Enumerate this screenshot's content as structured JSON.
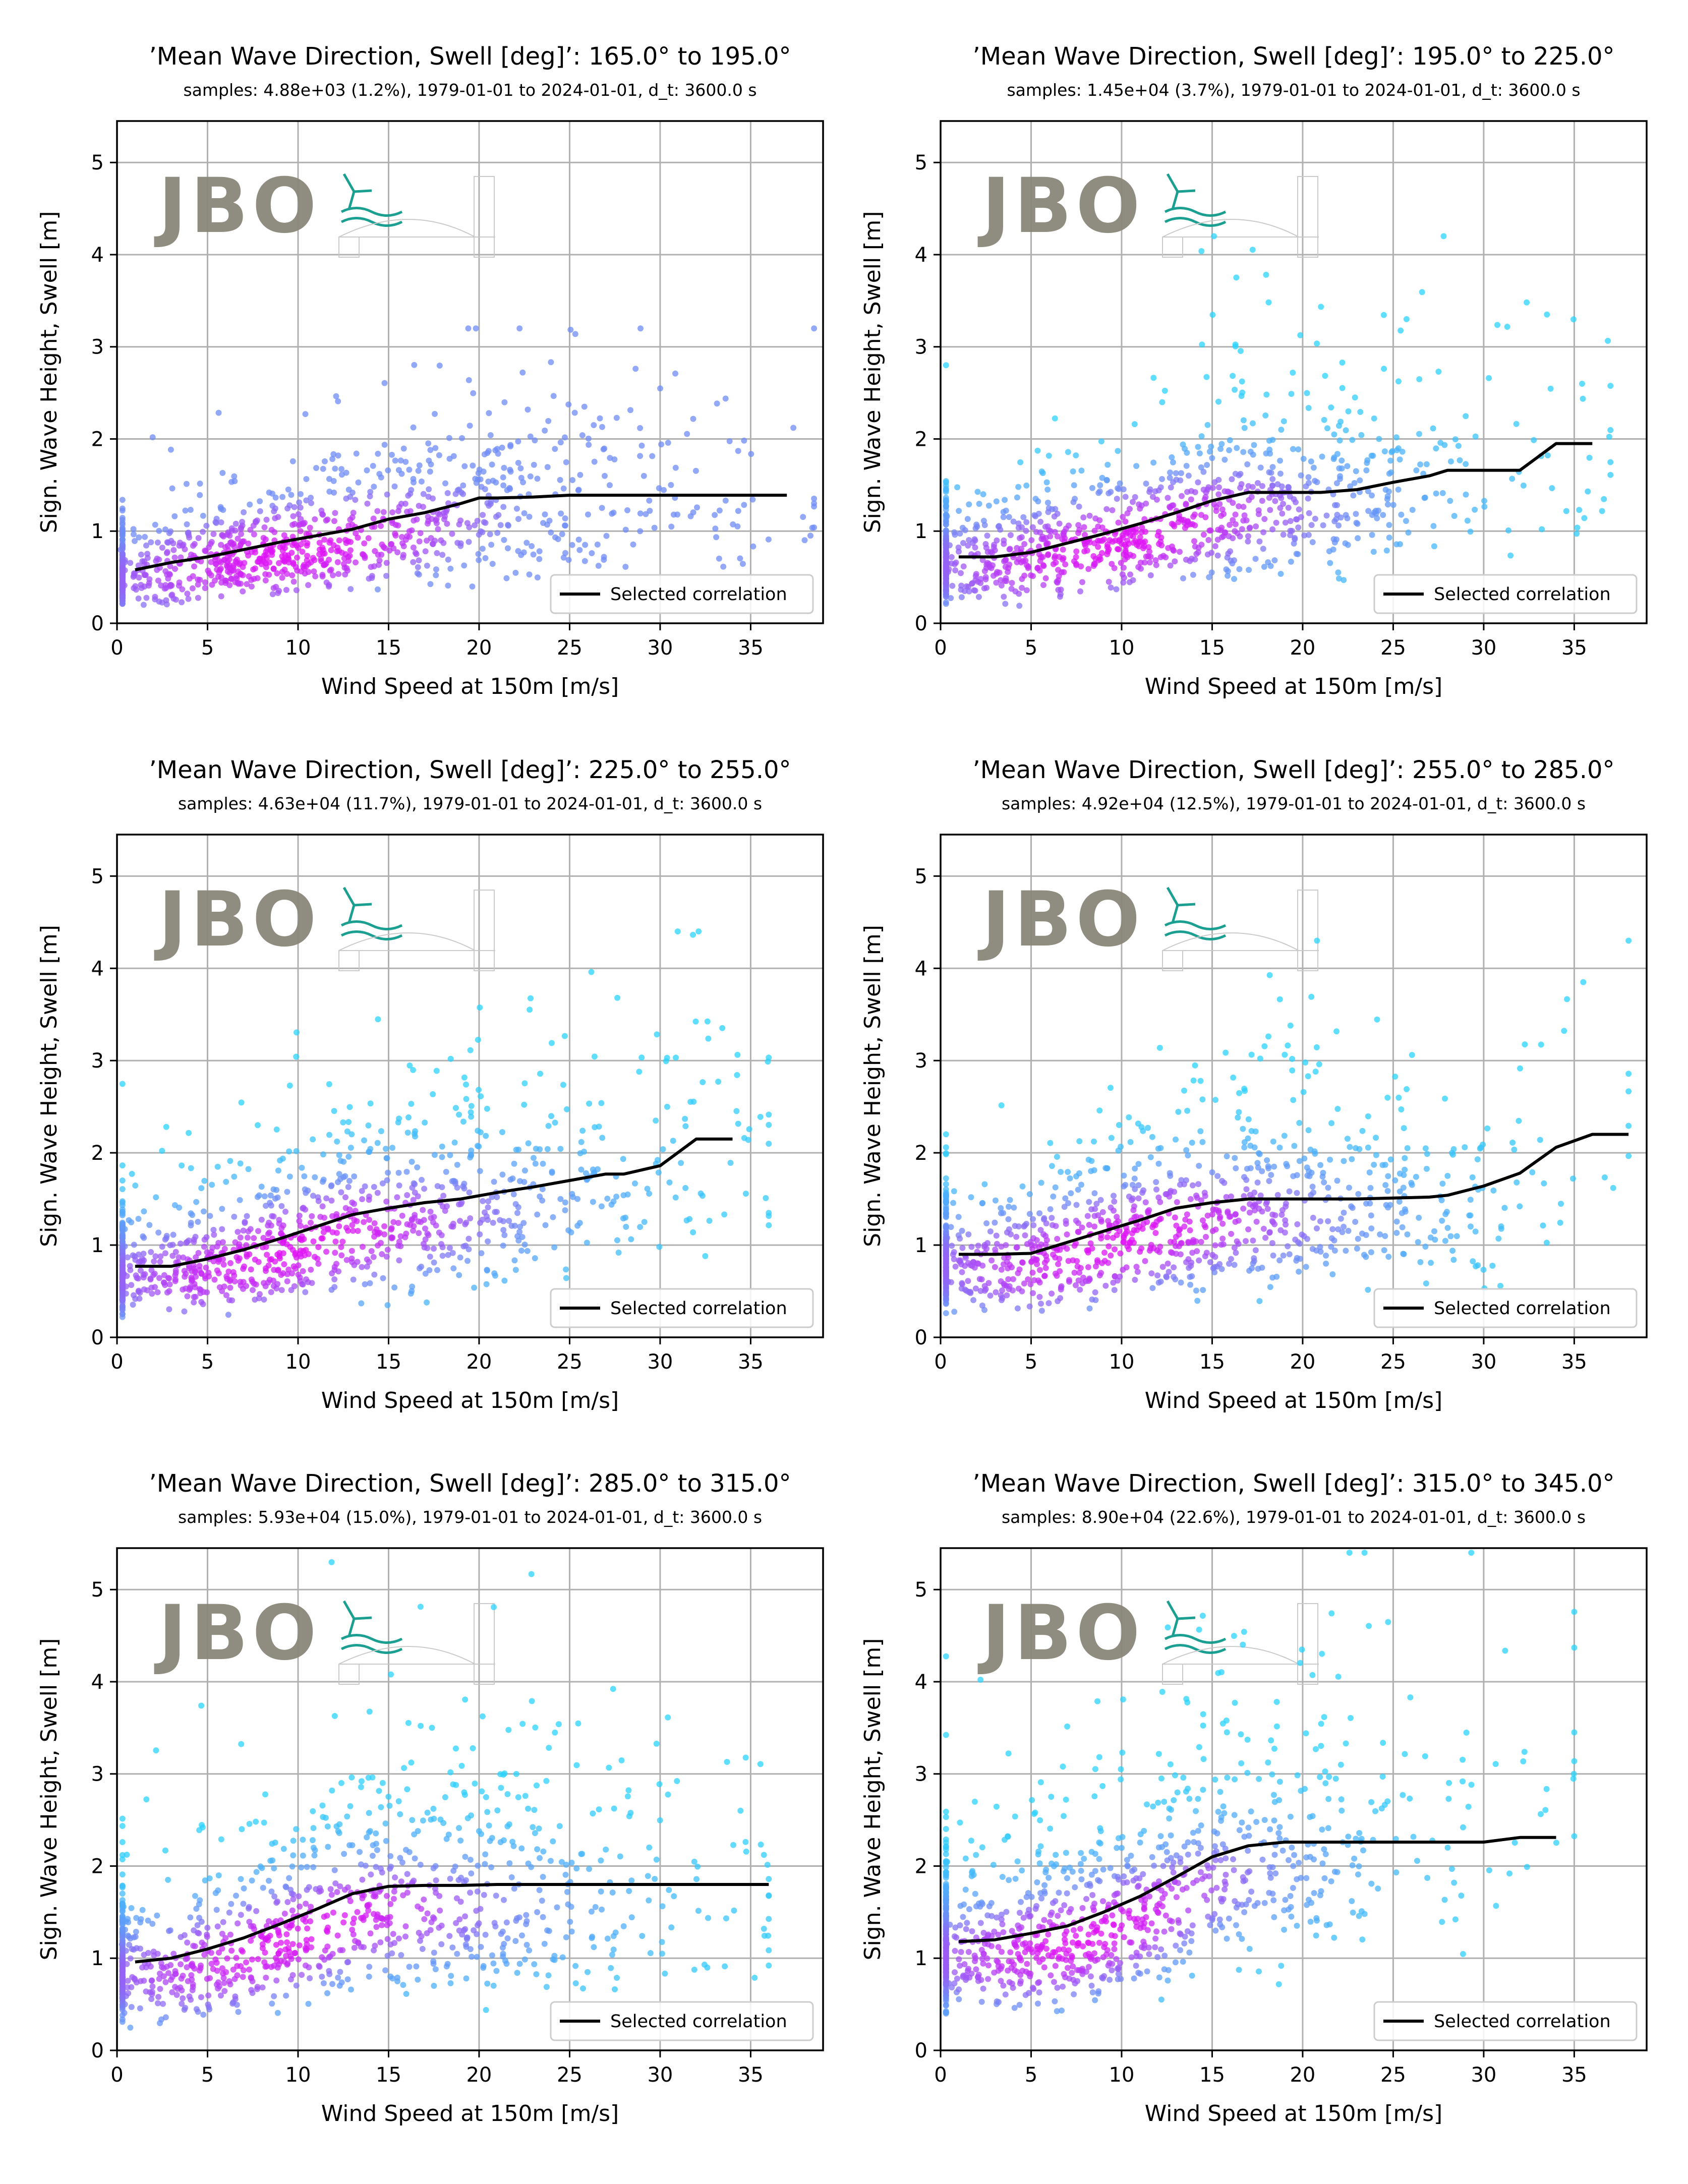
{
  "figure": {
    "logo_text": "JBO",
    "colors": {
      "density_low": "#2ad4fc",
      "density_mid": "#6f8cf6",
      "density_high": "#e010f4",
      "correlation_line": "#000000",
      "grid": "#b0b0b0",
      "logo_text": "#8a867a",
      "logo_accent": "#0f9a8c"
    }
  },
  "chart_data": [
    {
      "type": "scatter",
      "title": "’Mean Wave Direction, Swell [deg]’: 165.0° to 195.0°",
      "subtitle": "samples: 4.88e+03 (1.2%), 1979-01-01 to 2024-01-01, d_t: 3600.0 s",
      "xlabel": "Wind Speed at 150m [m/s]",
      "ylabel": "Sign. Wave Height, Swell [m]",
      "xlim": [
        0,
        39
      ],
      "ylim": [
        0,
        5.45
      ],
      "xticks": [
        0,
        5,
        10,
        15,
        20,
        25,
        30,
        35
      ],
      "yticks": [
        0,
        1,
        2,
        3,
        4,
        5
      ],
      "grid": true,
      "legend": {
        "position": "lower-right",
        "entries": [
          "Selected correlation"
        ]
      },
      "scatter_cloud": {
        "x_range": [
          0,
          38.5
        ],
        "peak_x": 10,
        "min_y": 0.2,
        "max_y": 3.2,
        "dense_color": "magenta",
        "sparse_color": "blue"
      },
      "series": [
        {
          "name": "Selected correlation",
          "x": [
            1,
            3,
            5,
            7,
            9,
            11,
            13,
            15,
            17,
            19,
            20,
            21,
            23,
            25,
            27,
            29,
            31,
            33,
            35,
            37
          ],
          "y": [
            0.58,
            0.66,
            0.72,
            0.8,
            0.88,
            0.95,
            1.02,
            1.13,
            1.2,
            1.3,
            1.36,
            1.36,
            1.37,
            1.39,
            1.39,
            1.39,
            1.39,
            1.39,
            1.39,
            1.39
          ]
        }
      ]
    },
    {
      "type": "scatter",
      "title": "’Mean Wave Direction, Swell [deg]’: 195.0° to 225.0°",
      "subtitle": "samples: 1.45e+04 (3.7%), 1979-01-01 to 2024-01-01, d_t: 3600.0 s",
      "xlabel": "Wind Speed at 150m [m/s]",
      "ylabel": "Sign. Wave Height, Swell [m]",
      "xlim": [
        0,
        39
      ],
      "ylim": [
        0,
        5.45
      ],
      "xticks": [
        0,
        5,
        10,
        15,
        20,
        25,
        30,
        35
      ],
      "yticks": [
        0,
        1,
        2,
        3,
        4,
        5
      ],
      "grid": true,
      "legend": {
        "position": "lower-right",
        "entries": [
          "Selected correlation"
        ]
      },
      "scatter_cloud": {
        "x_range": [
          0,
          37
        ],
        "peak_x": 10,
        "min_y": 0.15,
        "max_y": 4.2,
        "dense_color": "magenta",
        "sparse_color": "cyan"
      },
      "series": [
        {
          "name": "Selected correlation",
          "x": [
            1,
            3,
            5,
            7,
            9,
            11,
            13,
            15,
            17,
            19,
            21,
            23,
            25,
            27,
            28,
            30,
            32,
            34,
            36
          ],
          "y": [
            0.72,
            0.72,
            0.77,
            0.87,
            0.97,
            1.08,
            1.2,
            1.33,
            1.42,
            1.42,
            1.42,
            1.45,
            1.53,
            1.6,
            1.66,
            1.66,
            1.66,
            1.95,
            1.95
          ]
        }
      ]
    },
    {
      "type": "scatter",
      "title": "’Mean Wave Direction, Swell [deg]’: 225.0° to 255.0°",
      "subtitle": "samples: 4.63e+04 (11.7%), 1979-01-01 to 2024-01-01, d_t: 3600.0 s",
      "xlabel": "Wind Speed at 150m [m/s]",
      "ylabel": "Sign. Wave Height, Swell [m]",
      "xlim": [
        0,
        39
      ],
      "ylim": [
        0,
        5.45
      ],
      "xticks": [
        0,
        5,
        10,
        15,
        20,
        25,
        30,
        35
      ],
      "yticks": [
        0,
        1,
        2,
        3,
        4,
        5
      ],
      "grid": true,
      "legend": {
        "position": "lower-right",
        "entries": [
          "Selected correlation"
        ]
      },
      "scatter_cloud": {
        "x_range": [
          0,
          36
        ],
        "peak_x": 10,
        "min_y": 0.15,
        "max_y": 4.4,
        "dense_color": "magenta",
        "sparse_color": "cyan"
      },
      "series": [
        {
          "name": "Selected correlation",
          "x": [
            1,
            3,
            5,
            7,
            9,
            11,
            13,
            15,
            17,
            19,
            21,
            23,
            25,
            27,
            28,
            30,
            32,
            34
          ],
          "y": [
            0.77,
            0.77,
            0.85,
            0.95,
            1.07,
            1.2,
            1.33,
            1.4,
            1.46,
            1.5,
            1.57,
            1.63,
            1.7,
            1.77,
            1.77,
            1.86,
            2.15,
            2.15
          ]
        }
      ]
    },
    {
      "type": "scatter",
      "title": "’Mean Wave Direction, Swell [deg]’: 255.0° to 285.0°",
      "subtitle": "samples: 4.92e+04 (12.5%), 1979-01-01 to 2024-01-01, d_t: 3600.0 s",
      "xlabel": "Wind Speed at 150m [m/s]",
      "ylabel": "Sign. Wave Height, Swell [m]",
      "xlim": [
        0,
        39
      ],
      "ylim": [
        0,
        5.45
      ],
      "xticks": [
        0,
        5,
        10,
        15,
        20,
        25,
        30,
        35
      ],
      "yticks": [
        0,
        1,
        2,
        3,
        4,
        5
      ],
      "grid": true,
      "legend": {
        "position": "lower-right",
        "entries": [
          "Selected correlation"
        ]
      },
      "scatter_cloud": {
        "x_range": [
          0,
          38
        ],
        "peak_x": 10,
        "min_y": 0.15,
        "max_y": 4.3,
        "dense_color": "magenta",
        "sparse_color": "cyan"
      },
      "series": [
        {
          "name": "Selected correlation",
          "x": [
            1,
            3,
            5,
            7,
            9,
            11,
            13,
            15,
            17,
            19,
            21,
            23,
            25,
            27,
            28,
            30,
            32,
            34,
            36,
            38
          ],
          "y": [
            0.9,
            0.9,
            0.91,
            1.03,
            1.15,
            1.27,
            1.4,
            1.46,
            1.5,
            1.5,
            1.5,
            1.5,
            1.51,
            1.52,
            1.54,
            1.64,
            1.78,
            2.06,
            2.2,
            2.2
          ]
        }
      ]
    },
    {
      "type": "scatter",
      "title": "’Mean Wave Direction, Swell [deg]’: 285.0° to 315.0°",
      "subtitle": "samples: 5.93e+04 (15.0%), 1979-01-01 to 2024-01-01, d_t: 3600.0 s",
      "xlabel": "Wind Speed at 150m [m/s]",
      "ylabel": "Sign. Wave Height, Swell [m]",
      "xlim": [
        0,
        39
      ],
      "ylim": [
        0,
        5.45
      ],
      "xticks": [
        0,
        5,
        10,
        15,
        20,
        25,
        30,
        35
      ],
      "yticks": [
        0,
        1,
        2,
        3,
        4,
        5
      ],
      "grid": true,
      "legend": {
        "position": "lower-right",
        "entries": [
          "Selected correlation"
        ]
      },
      "scatter_cloud": {
        "x_range": [
          0,
          36
        ],
        "peak_x": 10,
        "min_y": 0.15,
        "max_y": 5.3,
        "dense_color": "magenta",
        "sparse_color": "cyan"
      },
      "series": [
        {
          "name": "Selected correlation",
          "x": [
            1,
            3,
            5,
            7,
            9,
            11,
            13,
            15,
            17,
            19,
            21,
            23,
            25,
            27,
            29,
            31,
            33,
            35,
            36
          ],
          "y": [
            0.96,
            1.0,
            1.1,
            1.22,
            1.37,
            1.53,
            1.7,
            1.78,
            1.79,
            1.79,
            1.8,
            1.8,
            1.8,
            1.8,
            1.8,
            1.8,
            1.8,
            1.8,
            1.8
          ]
        }
      ]
    },
    {
      "type": "scatter",
      "title": "’Mean Wave Direction, Swell [deg]’: 315.0° to 345.0°",
      "subtitle": "samples: 8.90e+04 (22.6%), 1979-01-01 to 2024-01-01, d_t: 3600.0 s",
      "xlabel": "Wind Speed at 150m [m/s]",
      "ylabel": "Sign. Wave Height, Swell [m]",
      "xlim": [
        0,
        39
      ],
      "ylim": [
        0,
        5.45
      ],
      "xticks": [
        0,
        5,
        10,
        15,
        20,
        25,
        30,
        35
      ],
      "yticks": [
        0,
        1,
        2,
        3,
        4,
        5
      ],
      "grid": true,
      "legend": {
        "position": "lower-right",
        "entries": [
          "Selected correlation"
        ]
      },
      "scatter_cloud": {
        "x_range": [
          0,
          35
        ],
        "peak_x": 8,
        "min_y": 0.15,
        "max_y": 5.4,
        "dense_color": "magenta",
        "sparse_color": "cyan"
      },
      "series": [
        {
          "name": "Selected correlation",
          "x": [
            1,
            3,
            5,
            7,
            9,
            11,
            13,
            15,
            17,
            19,
            21,
            23,
            25,
            27,
            29,
            30,
            32,
            34
          ],
          "y": [
            1.18,
            1.2,
            1.27,
            1.35,
            1.5,
            1.67,
            1.88,
            2.1,
            2.22,
            2.26,
            2.26,
            2.26,
            2.26,
            2.26,
            2.26,
            2.26,
            2.31,
            2.31
          ]
        }
      ]
    }
  ]
}
